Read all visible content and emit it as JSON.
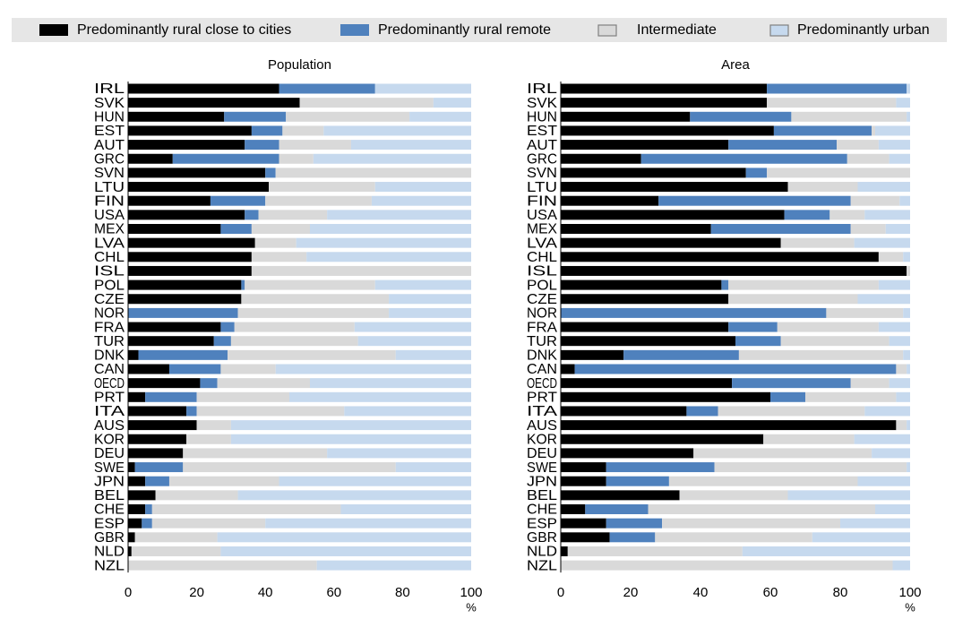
{
  "chart_data": [
    {
      "type": "bar",
      "orientation": "horizontal",
      "stacked": true,
      "title": "Population",
      "x_label": "%",
      "categories": [
        "IRL",
        "SVK",
        "HUN",
        "EST",
        "AUT",
        "GRC",
        "SVN",
        "LTU",
        "FIN",
        "USA",
        "MEX",
        "LVA",
        "CHL",
        "ISL",
        "POL",
        "CZE",
        "NOR",
        "FRA",
        "TUR",
        "DNK",
        "CAN",
        "OECD",
        "PRT",
        "ITA",
        "AUS",
        "KOR",
        "DEU",
        "SWE",
        "JPN",
        "BEL",
        "CHE",
        "ESP",
        "GBR",
        "NLD",
        "NZL"
      ],
      "series": [
        {
          "name": "Predominantly rural close to cities",
          "color": "#000000",
          "values": [
            44,
            50,
            28,
            36,
            34,
            13,
            40,
            41,
            24,
            34,
            27,
            37,
            36,
            36,
            33,
            33,
            0,
            27,
            25,
            3,
            12,
            21,
            5,
            17,
            20,
            17,
            16,
            2,
            5,
            8,
            5,
            4,
            2,
            1,
            0
          ]
        },
        {
          "name": "Predominantly rural remote",
          "color": "#4f81bd",
          "values": [
            28,
            0,
            18,
            9,
            10,
            31,
            3,
            0,
            16,
            4,
            9,
            0,
            0,
            0,
            1,
            0,
            32,
            4,
            5,
            26,
            15,
            5,
            15,
            3,
            0,
            0,
            0,
            14,
            7,
            0,
            2,
            3,
            0,
            0,
            0
          ]
        },
        {
          "name": "Intermediate",
          "color": "#d9d9d9",
          "values": [
            0,
            39,
            36,
            12,
            21,
            10,
            57,
            31,
            31,
            20,
            17,
            12,
            16,
            64,
            38,
            43,
            44,
            35,
            37,
            49,
            16,
            27,
            27,
            43,
            10,
            13,
            42,
            62,
            32,
            24,
            55,
            33,
            24,
            26,
            55
          ]
        },
        {
          "name": "Predominantly urban",
          "color": "#c6d9ee",
          "values": [
            28,
            11,
            18,
            43,
            35,
            46,
            0,
            28,
            29,
            42,
            47,
            51,
            48,
            0,
            28,
            24,
            24,
            34,
            33,
            22,
            57,
            47,
            53,
            37,
            70,
            70,
            42,
            22,
            56,
            68,
            38,
            60,
            74,
            73,
            45
          ]
        }
      ],
      "xlim": [
        0,
        100
      ],
      "xticks": [
        0,
        20,
        40,
        60,
        80,
        100
      ]
    },
    {
      "type": "bar",
      "orientation": "horizontal",
      "stacked": true,
      "title": "Area",
      "x_label": "%",
      "categories": [
        "IRL",
        "SVK",
        "HUN",
        "EST",
        "AUT",
        "GRC",
        "SVN",
        "LTU",
        "FIN",
        "USA",
        "MEX",
        "LVA",
        "CHL",
        "ISL",
        "POL",
        "CZE",
        "NOR",
        "FRA",
        "TUR",
        "DNK",
        "CAN",
        "OECD",
        "PRT",
        "ITA",
        "AUS",
        "KOR",
        "DEU",
        "SWE",
        "JPN",
        "BEL",
        "CHE",
        "ESP",
        "GBR",
        "NLD",
        "NZL"
      ],
      "series": [
        {
          "color": "#000000",
          "values": [
            59,
            59,
            37,
            61,
            48,
            23,
            53,
            65,
            28,
            64,
            43,
            63,
            91,
            99,
            46,
            48,
            0,
            48,
            50,
            18,
            4,
            49,
            60,
            36,
            96,
            58,
            38,
            13,
            13,
            34,
            7,
            13,
            14,
            2,
            0
          ]
        },
        {
          "color": "#4f81bd",
          "values": [
            40,
            0,
            29,
            28,
            31,
            59,
            6,
            0,
            55,
            13,
            40,
            0,
            0,
            0,
            2,
            0,
            76,
            14,
            13,
            33,
            92,
            34,
            10,
            9,
            0,
            0,
            0,
            31,
            18,
            0,
            18,
            16,
            13,
            0,
            0
          ]
        },
        {
          "color": "#d9d9d9",
          "values": [
            0,
            37,
            33,
            1,
            12,
            12,
            41,
            20,
            14,
            10,
            10,
            21,
            7,
            1,
            43,
            37,
            22,
            29,
            31,
            47,
            3,
            11,
            26,
            42,
            3,
            26,
            51,
            55,
            54,
            31,
            65,
            51,
            45,
            50,
            95
          ]
        },
        {
          "color": "#c6d9ee",
          "values": [
            1,
            4,
            1,
            10,
            9,
            6,
            0,
            15,
            3,
            13,
            7,
            16,
            2,
            0,
            9,
            15,
            2,
            9,
            6,
            2,
            1,
            6,
            4,
            13,
            1,
            16,
            11,
            1,
            15,
            35,
            10,
            20,
            28,
            48,
            5
          ]
        }
      ],
      "xlim": [
        0,
        100
      ],
      "xticks": [
        0,
        20,
        40,
        60,
        80,
        100
      ]
    }
  ]
}
